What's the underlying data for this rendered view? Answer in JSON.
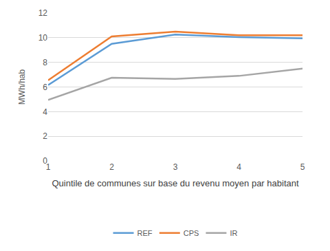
{
  "chart_data": {
    "type": "line",
    "x_label": "Quintile de communes sur base du revenu moyen par habitant",
    "y_label": "MWh/hab",
    "categories": [
      "1",
      "2",
      "3",
      "4",
      "5"
    ],
    "series": [
      {
        "name": "REF",
        "color": "#5b9bd5",
        "values": [
          6.15,
          9.5,
          10.25,
          10.05,
          9.95
        ]
      },
      {
        "name": "CPS",
        "color": "#ed7d31",
        "values": [
          6.55,
          10.1,
          10.5,
          10.2,
          10.2
        ]
      },
      {
        "name": "IR",
        "color": "#a5a5a5",
        "values": [
          4.95,
          6.75,
          6.65,
          6.9,
          7.5
        ]
      }
    ],
    "ylim": [
      0,
      12
    ],
    "yticks": [
      0,
      2,
      4,
      6,
      8,
      10,
      12
    ],
    "grid": true,
    "legend": "bottom"
  }
}
